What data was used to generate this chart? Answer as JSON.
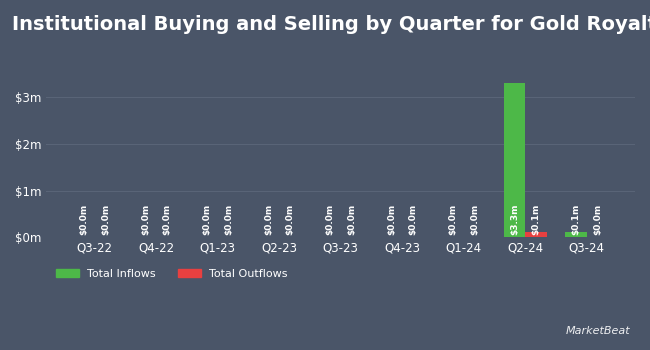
{
  "title": "Institutional Buying and Selling by Quarter for Gold Royalty",
  "quarters": [
    "Q3-22",
    "Q4-22",
    "Q1-23",
    "Q2-23",
    "Q3-23",
    "Q4-23",
    "Q1-24",
    "Q2-24",
    "Q3-24"
  ],
  "inflows": [
    0.0,
    0.0,
    0.0,
    0.0,
    0.0,
    0.0,
    0.0,
    3.3,
    0.1
  ],
  "outflows": [
    0.0,
    0.0,
    0.0,
    0.0,
    0.0,
    0.0,
    0.0,
    0.1,
    0.0
  ],
  "inflow_labels": [
    "$0.0m",
    "$0.0m",
    "$0.0m",
    "$0.0m",
    "$0.0m",
    "$0.0m",
    "$0.0m",
    "$3.3m",
    "$0.1m"
  ],
  "outflow_labels": [
    "$0.0m",
    "$0.0m",
    "$0.0m",
    "$0.0m",
    "$0.0m",
    "$0.0m",
    "$0.0m",
    "$0.1m",
    "$0.0m"
  ],
  "inflow_color": "#4db848",
  "outflow_color": "#e84040",
  "bg_color": "#4a5568",
  "plot_bg_color": "#4a5568",
  "text_color": "#ffffff",
  "grid_color": "#5a6578",
  "bar_width": 0.35,
  "ylim": [
    0,
    4.0
  ],
  "yticks": [
    0,
    1,
    2,
    3
  ],
  "ytick_labels": [
    "$0m",
    "$1m",
    "$2m",
    "$3m"
  ],
  "title_fontsize": 14,
  "label_fontsize": 6.5,
  "tick_fontsize": 8.5,
  "legend_fontsize": 8
}
